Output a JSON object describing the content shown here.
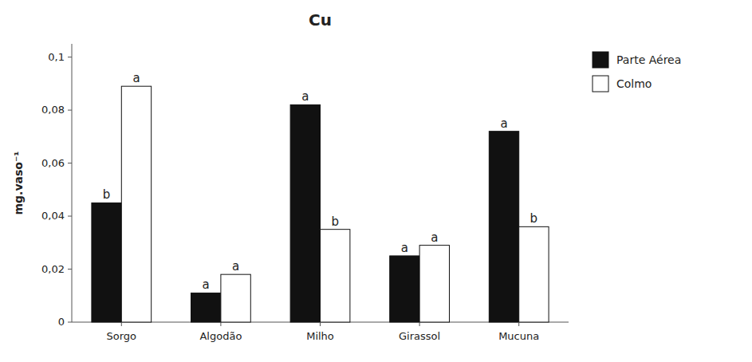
{
  "chart_data": {
    "type": "bar",
    "title": "Cu",
    "ylabel": "mg.vaso⁻¹",
    "categories": [
      "Sorgo",
      "Algodão",
      "Milho",
      "Girassol",
      "Mucuna"
    ],
    "series": [
      {
        "name": "Parte Aérea",
        "color": "#111111",
        "values": [
          0.045,
          0.011,
          0.082,
          0.025,
          0.072
        ],
        "annotations": [
          "b",
          "a",
          "a",
          "a",
          "a"
        ]
      },
      {
        "name": "Colmo",
        "color": "#ffffff",
        "values": [
          0.089,
          0.018,
          0.035,
          0.029,
          0.036
        ],
        "annotations": [
          "a",
          "a",
          "b",
          "a",
          "b"
        ]
      }
    ],
    "ylim": [
      0,
      0.105
    ],
    "yticks": [
      0,
      {
        "value": 0.02,
        "label": "0,02"
      },
      {
        "value": 0.04,
        "label": "0,04"
      },
      {
        "value": 0.06,
        "label": "0,06"
      },
      {
        "value": 0.08,
        "label": "0,08"
      },
      {
        "value": 0.1,
        "label": "0,1"
      }
    ],
    "grid": false,
    "legend": "right"
  }
}
